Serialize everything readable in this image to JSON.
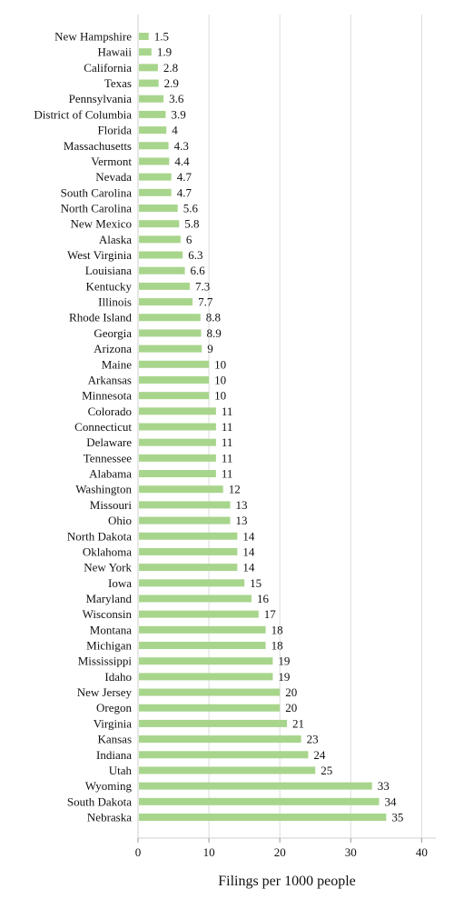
{
  "chart_data": {
    "type": "bar",
    "orientation": "horizontal",
    "title": "",
    "xlabel": "Filings per 1000 people",
    "ylabel": "",
    "xlim": [
      0,
      42
    ],
    "xticks": [
      0,
      10,
      20,
      30,
      40
    ],
    "grid": "vertical",
    "bar_color": "#a8d58c",
    "categories": [
      "New Hampshire",
      "Hawaii",
      "California",
      "Texas",
      "Pennsylvania",
      "District of Columbia",
      "Florida",
      "Massachusetts",
      "Vermont",
      "Nevada",
      "South Carolina",
      "North Carolina",
      "New Mexico",
      "Alaska",
      "West Virginia",
      "Louisiana",
      "Kentucky",
      "Illinois",
      "Rhode Island",
      "Georgia",
      "Arizona",
      "Maine",
      "Arkansas",
      "Minnesota",
      "Colorado",
      "Connecticut",
      "Delaware",
      "Tennessee",
      "Alabama",
      "Washington",
      "Missouri",
      "Ohio",
      "North Dakota",
      "Oklahoma",
      "New York",
      "Iowa",
      "Maryland",
      "Wisconsin",
      "Montana",
      "Michigan",
      "Mississippi",
      "Idaho",
      "New Jersey",
      "Oregon",
      "Virginia",
      "Kansas",
      "Indiana",
      "Utah",
      "Wyoming",
      "South Dakota",
      "Nebraska"
    ],
    "values": [
      1.5,
      1.9,
      2.8,
      2.9,
      3.6,
      3.9,
      4,
      4.3,
      4.4,
      4.7,
      4.7,
      5.6,
      5.8,
      6,
      6.3,
      6.6,
      7.3,
      7.7,
      8.8,
      8.9,
      9,
      10,
      10,
      10,
      11,
      11,
      11,
      11,
      11,
      12,
      13,
      13,
      14,
      14,
      14,
      15,
      16,
      17,
      18,
      18,
      19,
      19,
      20,
      20,
      21,
      23,
      24,
      25,
      33,
      34,
      35
    ],
    "value_labels": [
      "1.5",
      "1.9",
      "2.8",
      "2.9",
      "3.6",
      "3.9",
      "4",
      "4.3",
      "4.4",
      "4.7",
      "4.7",
      "5.6",
      "5.8",
      "6",
      "6.3",
      "6.6",
      "7.3",
      "7.7",
      "8.8",
      "8.9",
      "9",
      "10",
      "10",
      "10",
      "11",
      "11",
      "11",
      "11",
      "11",
      "12",
      "13",
      "13",
      "14",
      "14",
      "14",
      "15",
      "16",
      "17",
      "18",
      "18",
      "19",
      "19",
      "20",
      "20",
      "21",
      "23",
      "24",
      "25",
      "33",
      "34",
      "35"
    ]
  }
}
